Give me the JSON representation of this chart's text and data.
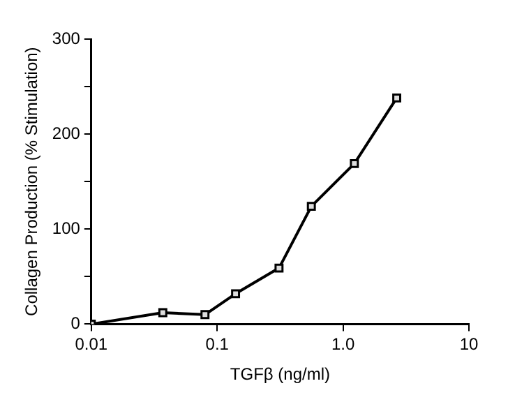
{
  "chart_data": {
    "type": "line",
    "xlabel": "TGFβ (ng/ml)",
    "ylabel": "Collagen Production (% Stimulation)",
    "x": [
      0.01,
      0.037,
      0.08,
      0.14,
      0.31,
      0.56,
      1.23,
      2.67
    ],
    "series": [
      {
        "color": "#000000",
        "values": [
          0,
          12,
          10,
          32,
          59,
          124,
          169,
          238
        ]
      }
    ],
    "log": "x",
    "xlim": [
      0.01,
      10
    ],
    "xticks": [
      0.01,
      0.1,
      {
        "value": 1,
        "label": "1.0"
      },
      10
    ],
    "ylim": [
      0,
      300
    ],
    "yticks": [
      0,
      {
        "value": 50,
        "label": null
      },
      100,
      {
        "value": 150,
        "label": null
      },
      200,
      {
        "value": 250,
        "label": null
      },
      300
    ],
    "grid": false,
    "legend": false,
    "marker": "square",
    "line_style": "solid"
  }
}
